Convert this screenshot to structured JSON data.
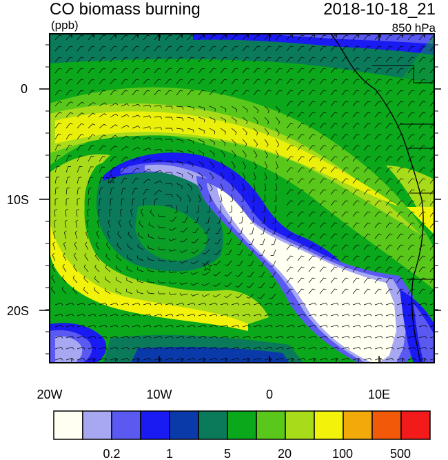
{
  "header": {
    "title": "CO biomass burning",
    "units": "(ppb)",
    "datetime": "2018-10-18_21",
    "level": "850 hPa"
  },
  "axes": {
    "lon_labels": [
      "20W",
      "10W",
      "0",
      "10E"
    ],
    "lat_labels": [
      "0",
      "10S",
      "20S"
    ]
  },
  "colorbar": {
    "colors": [
      "#fffff2",
      "#a8a8f2",
      "#5a5af2",
      "#1a1af2",
      "#0a3aaa",
      "#0a7a5a",
      "#0aa81a",
      "#5ac81a",
      "#a8dc1a",
      "#f2f20a",
      "#f2aa0a",
      "#f25a0a",
      "#f21a1a"
    ],
    "labels": [
      "0.2",
      "1",
      "5",
      "20",
      "100",
      "500"
    ]
  },
  "markers": {
    "symbol": "☆"
  }
}
